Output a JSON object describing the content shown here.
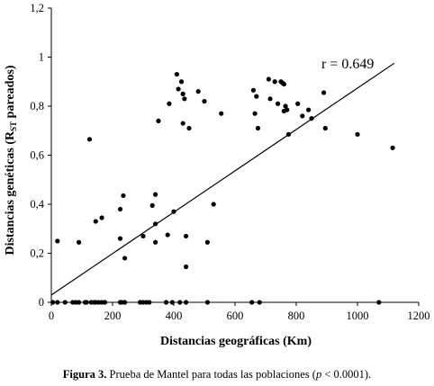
{
  "chart_data": {
    "type": "scatter",
    "xlabel": "Distancias geográficas (Km)",
    "ylabel_main": "Distancias genéticas (R",
    "ylabel_sub": "ST",
    "ylabel_end": " pareados)",
    "xlim": [
      0,
      1200
    ],
    "ylim": [
      0,
      1.2
    ],
    "xticks": [
      0,
      200,
      400,
      600,
      800,
      1000,
      1200
    ],
    "xtick_labels": [
      "0",
      "200",
      "400",
      "600",
      "800",
      "1000",
      "1200"
    ],
    "yticks": [
      0,
      0.2,
      0.4,
      0.6,
      0.8,
      1.0,
      1.2
    ],
    "ytick_labels": [
      "0",
      "0,2",
      "0,4",
      "0,6",
      "0,8",
      "1",
      "1,2"
    ],
    "grid": false,
    "annotation": "r = 0.649",
    "trendline": {
      "x": [
        0,
        1120
      ],
      "y": [
        0.03,
        0.975
      ]
    },
    "points": [
      [
        5,
        0
      ],
      [
        20,
        0
      ],
      [
        45,
        0
      ],
      [
        70,
        0
      ],
      [
        80,
        0
      ],
      [
        90,
        0
      ],
      [
        110,
        0
      ],
      [
        115,
        0
      ],
      [
        130,
        0
      ],
      [
        140,
        0
      ],
      [
        145,
        0
      ],
      [
        155,
        0
      ],
      [
        165,
        0
      ],
      [
        175,
        0
      ],
      [
        225,
        0
      ],
      [
        230,
        0
      ],
      [
        240,
        0
      ],
      [
        290,
        0
      ],
      [
        300,
        0
      ],
      [
        310,
        0
      ],
      [
        320,
        0
      ],
      [
        375,
        0
      ],
      [
        395,
        0
      ],
      [
        420,
        0
      ],
      [
        440,
        0
      ],
      [
        510,
        0
      ],
      [
        655,
        0
      ],
      [
        680,
        0
      ],
      [
        1070,
        0
      ],
      [
        20,
        0.25
      ],
      [
        90,
        0.245
      ],
      [
        125,
        0.665
      ],
      [
        145,
        0.33
      ],
      [
        165,
        0.345
      ],
      [
        225,
        0.38
      ],
      [
        225,
        0.26
      ],
      [
        235,
        0.435
      ],
      [
        240,
        0.18
      ],
      [
        300,
        0.27
      ],
      [
        330,
        0.395
      ],
      [
        340,
        0.32
      ],
      [
        340,
        0.44
      ],
      [
        340,
        0.245
      ],
      [
        350,
        0.74
      ],
      [
        380,
        0.275
      ],
      [
        385,
        0.81
      ],
      [
        400,
        0.37
      ],
      [
        410,
        0.93
      ],
      [
        415,
        0.87
      ],
      [
        425,
        0.9
      ],
      [
        430,
        0.85
      ],
      [
        430,
        0.73
      ],
      [
        435,
        0.83
      ],
      [
        440,
        0.27
      ],
      [
        440,
        0.145
      ],
      [
        450,
        0.71
      ],
      [
        480,
        0.86
      ],
      [
        500,
        0.82
      ],
      [
        510,
        0.245
      ],
      [
        530,
        0.4
      ],
      [
        555,
        0.77
      ],
      [
        660,
        0.865
      ],
      [
        665,
        0.77
      ],
      [
        670,
        0.84
      ],
      [
        675,
        0.71
      ],
      [
        710,
        0.91
      ],
      [
        715,
        0.83
      ],
      [
        730,
        0.9
      ],
      [
        740,
        0.81
      ],
      [
        750,
        0.9
      ],
      [
        755,
        0.895
      ],
      [
        760,
        0.89
      ],
      [
        760,
        0.78
      ],
      [
        765,
        0.8
      ],
      [
        770,
        0.785
      ],
      [
        775,
        0.685
      ],
      [
        805,
        0.81
      ],
      [
        820,
        0.76
      ],
      [
        840,
        0.785
      ],
      [
        850,
        0.75
      ],
      [
        890,
        0.855
      ],
      [
        895,
        0.71
      ],
      [
        1000,
        0.685
      ],
      [
        1115,
        0.63
      ]
    ]
  },
  "caption": {
    "label": "Figura 3.",
    "text_a": " Prueba de Mantel para todas las poblaciones (",
    "p_symbol": "p",
    "text_b": " < 0.0001)."
  }
}
